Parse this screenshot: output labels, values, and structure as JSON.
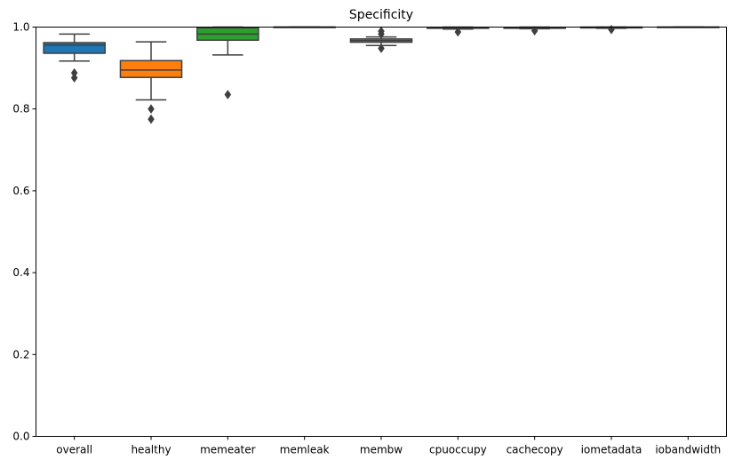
{
  "chart_data": {
    "type": "box",
    "title": "Specificity",
    "xlabel": "",
    "ylabel": "",
    "ylim": [
      0.0,
      1.0
    ],
    "yticks": [
      {
        "value": 0.0,
        "label": "0.0"
      },
      {
        "value": 0.2,
        "label": "0.2"
      },
      {
        "value": 0.4,
        "label": "0.4"
      },
      {
        "value": 0.6,
        "label": "0.6"
      },
      {
        "value": 0.8,
        "label": "0.8"
      },
      {
        "value": 1.0,
        "label": "1.0"
      }
    ],
    "grid": false,
    "categories": [
      "overall",
      "healthy",
      "memeater",
      "memleak",
      "membw",
      "cpuoccupy",
      "cachecopy",
      "iometadata",
      "iobandwidth"
    ],
    "boxes": [
      {
        "category": "overall",
        "color": "#1f77b4",
        "whisker_low": 0.917,
        "q1": 0.936,
        "median": 0.956,
        "q3": 0.962,
        "whisker_high": 0.983,
        "outliers": [
          0.888,
          0.876
        ]
      },
      {
        "category": "healthy",
        "color": "#ff7f0e",
        "whisker_low": 0.822,
        "q1": 0.877,
        "median": 0.895,
        "q3": 0.918,
        "whisker_high": 0.964,
        "outliers": [
          0.8,
          0.775
        ]
      },
      {
        "category": "memeater",
        "color": "#2ca02c",
        "whisker_low": 0.932,
        "q1": 0.968,
        "median": 0.983,
        "q3": 0.998,
        "whisker_high": 1.0,
        "outliers": [
          0.835
        ]
      },
      {
        "category": "memleak",
        "color": "#d62728",
        "whisker_low": 1.0,
        "q1": 1.0,
        "median": 1.0,
        "q3": 1.0,
        "whisker_high": 1.0,
        "outliers": []
      },
      {
        "category": "membw",
        "color": "#9467bd",
        "whisker_low": 0.955,
        "q1": 0.963,
        "median": 0.967,
        "q3": 0.971,
        "whisker_high": 0.976,
        "outliers": [
          0.99,
          0.983,
          0.948
        ]
      },
      {
        "category": "cpuoccupy",
        "color": "#8c564b",
        "whisker_low": 0.995,
        "q1": 0.997,
        "median": 0.998,
        "q3": 0.999,
        "whisker_high": 1.0,
        "outliers": [
          0.988
        ]
      },
      {
        "category": "cachecopy",
        "color": "#e377c2",
        "whisker_low": 0.996,
        "q1": 0.997,
        "median": 0.998,
        "q3": 0.999,
        "whisker_high": 1.0,
        "outliers": [
          0.991
        ]
      },
      {
        "category": "iometadata",
        "color": "#7f7f7f",
        "whisker_low": 0.997,
        "q1": 0.998,
        "median": 0.999,
        "q3": 1.0,
        "whisker_high": 1.0,
        "outliers": [
          0.994
        ]
      },
      {
        "category": "iobandwidth",
        "color": "#bcbd22",
        "whisker_low": 1.0,
        "q1": 1.0,
        "median": 1.0,
        "q3": 1.0,
        "whisker_high": 1.0,
        "outliers": []
      }
    ]
  }
}
